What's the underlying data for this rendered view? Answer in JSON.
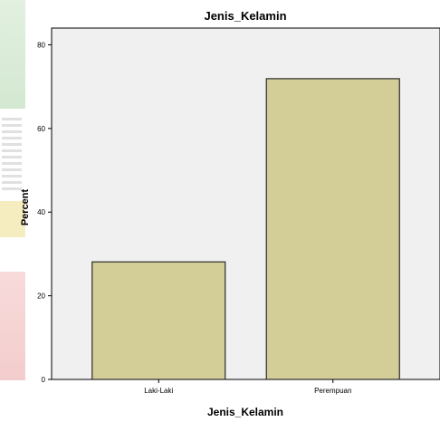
{
  "chart_data": {
    "type": "bar",
    "title": "Jenis_Kelamin",
    "xlabel": "Jenis_Kelamin",
    "ylabel": "Percent",
    "categories": [
      "Laki-Laki",
      "Perempuan"
    ],
    "values": [
      28.1,
      71.9
    ],
    "ylim": [
      0,
      84
    ],
    "yticks": [
      0,
      20,
      40,
      60,
      80
    ],
    "ytick_labels": [
      "0",
      "20",
      "40",
      "60",
      "80"
    ],
    "grid": false,
    "legend": "none",
    "colors": {
      "bar_fill": "#d3ce97",
      "bar_stroke": "#2b2b2b",
      "plot_background": "#f0f0f0"
    }
  }
}
